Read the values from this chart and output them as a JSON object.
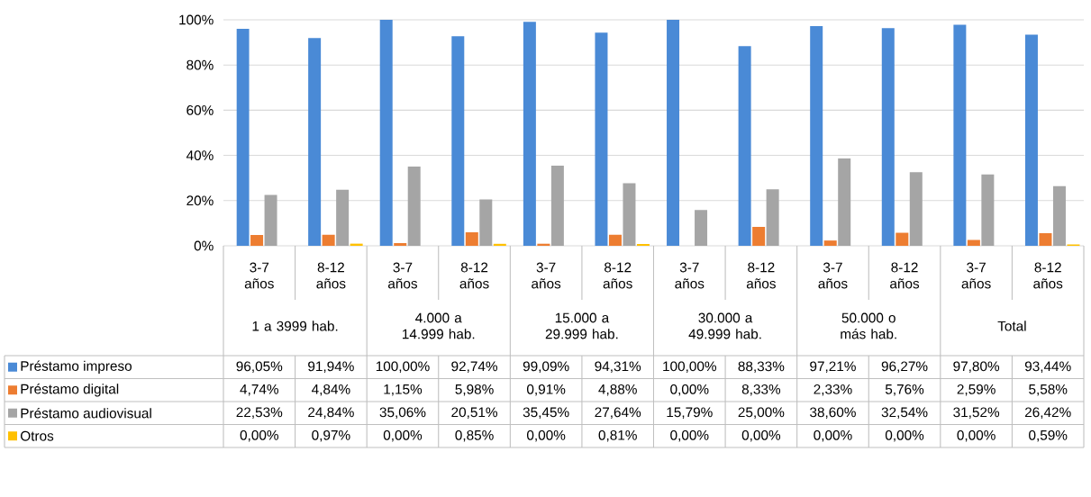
{
  "chart_data": {
    "type": "bar",
    "categories": [
      "3-7 años",
      "8-12 años",
      "3-7 años",
      "8-12 años",
      "3-7 años",
      "8-12 años",
      "3-7 años",
      "8-12 años",
      "3-7 años",
      "8-12 años",
      "3-7 años",
      "8-12 años"
    ],
    "annotations": [
      "1 a 3999 hab.",
      "4.000 a 14.999 hab.",
      "15.000 a 29.999 hab.",
      "30.000 a 49.999 hab.",
      "50.000 o más hab.",
      "Total"
    ],
    "series": [
      {
        "name": "Préstamo impreso",
        "color": "#4a8ad6",
        "values": [
          96.05,
          91.94,
          100.0,
          92.74,
          99.09,
          94.31,
          100.0,
          88.33,
          97.21,
          96.27,
          97.8,
          93.44
        ],
        "value_labels": [
          "96,05%",
          "91,94%",
          "100,00%",
          "92,74%",
          "99,09%",
          "94,31%",
          "100,00%",
          "88,33%",
          "97,21%",
          "96,27%",
          "97,80%",
          "93,44%"
        ]
      },
      {
        "name": "Préstamo digital",
        "color": "#ed7d31",
        "values": [
          4.74,
          4.84,
          1.15,
          5.98,
          0.91,
          4.88,
          0.0,
          8.33,
          2.33,
          5.76,
          2.59,
          5.58
        ],
        "value_labels": [
          "4,74%",
          "4,84%",
          "1,15%",
          "5,98%",
          "0,91%",
          "4,88%",
          "0,00%",
          "8,33%",
          "2,33%",
          "5,76%",
          "2,59%",
          "5,58%"
        ]
      },
      {
        "name": "Préstamo audiovisual",
        "color": "#a5a5a5",
        "values": [
          22.53,
          24.84,
          35.06,
          20.51,
          35.45,
          27.64,
          15.79,
          25.0,
          38.6,
          32.54,
          31.52,
          26.42
        ],
        "value_labels": [
          "22,53%",
          "24,84%",
          "35,06%",
          "20,51%",
          "35,45%",
          "27,64%",
          "15,79%",
          "25,00%",
          "38,60%",
          "32,54%",
          "31,52%",
          "26,42%"
        ]
      },
      {
        "name": "Otros",
        "color": "#ffc000",
        "values": [
          0.0,
          0.97,
          0.0,
          0.85,
          0.0,
          0.81,
          0.0,
          0.0,
          0.0,
          0.0,
          0.0,
          0.59
        ],
        "value_labels": [
          "0,00%",
          "0,97%",
          "0,00%",
          "0,85%",
          "0,00%",
          "0,81%",
          "0,00%",
          "0,00%",
          "0,00%",
          "0,00%",
          "0,00%",
          "0,59%"
        ]
      }
    ],
    "ylim": [
      0,
      100
    ],
    "yticks": [
      {
        "value": 0,
        "label": "0%"
      },
      {
        "value": 20,
        "label": "20%"
      },
      {
        "value": 40,
        "label": "40%"
      },
      {
        "value": 60,
        "label": "60%"
      },
      {
        "value": 80,
        "label": "80%"
      },
      {
        "value": 100,
        "label": "100%"
      }
    ],
    "grid": "y",
    "legend": "bottom"
  }
}
